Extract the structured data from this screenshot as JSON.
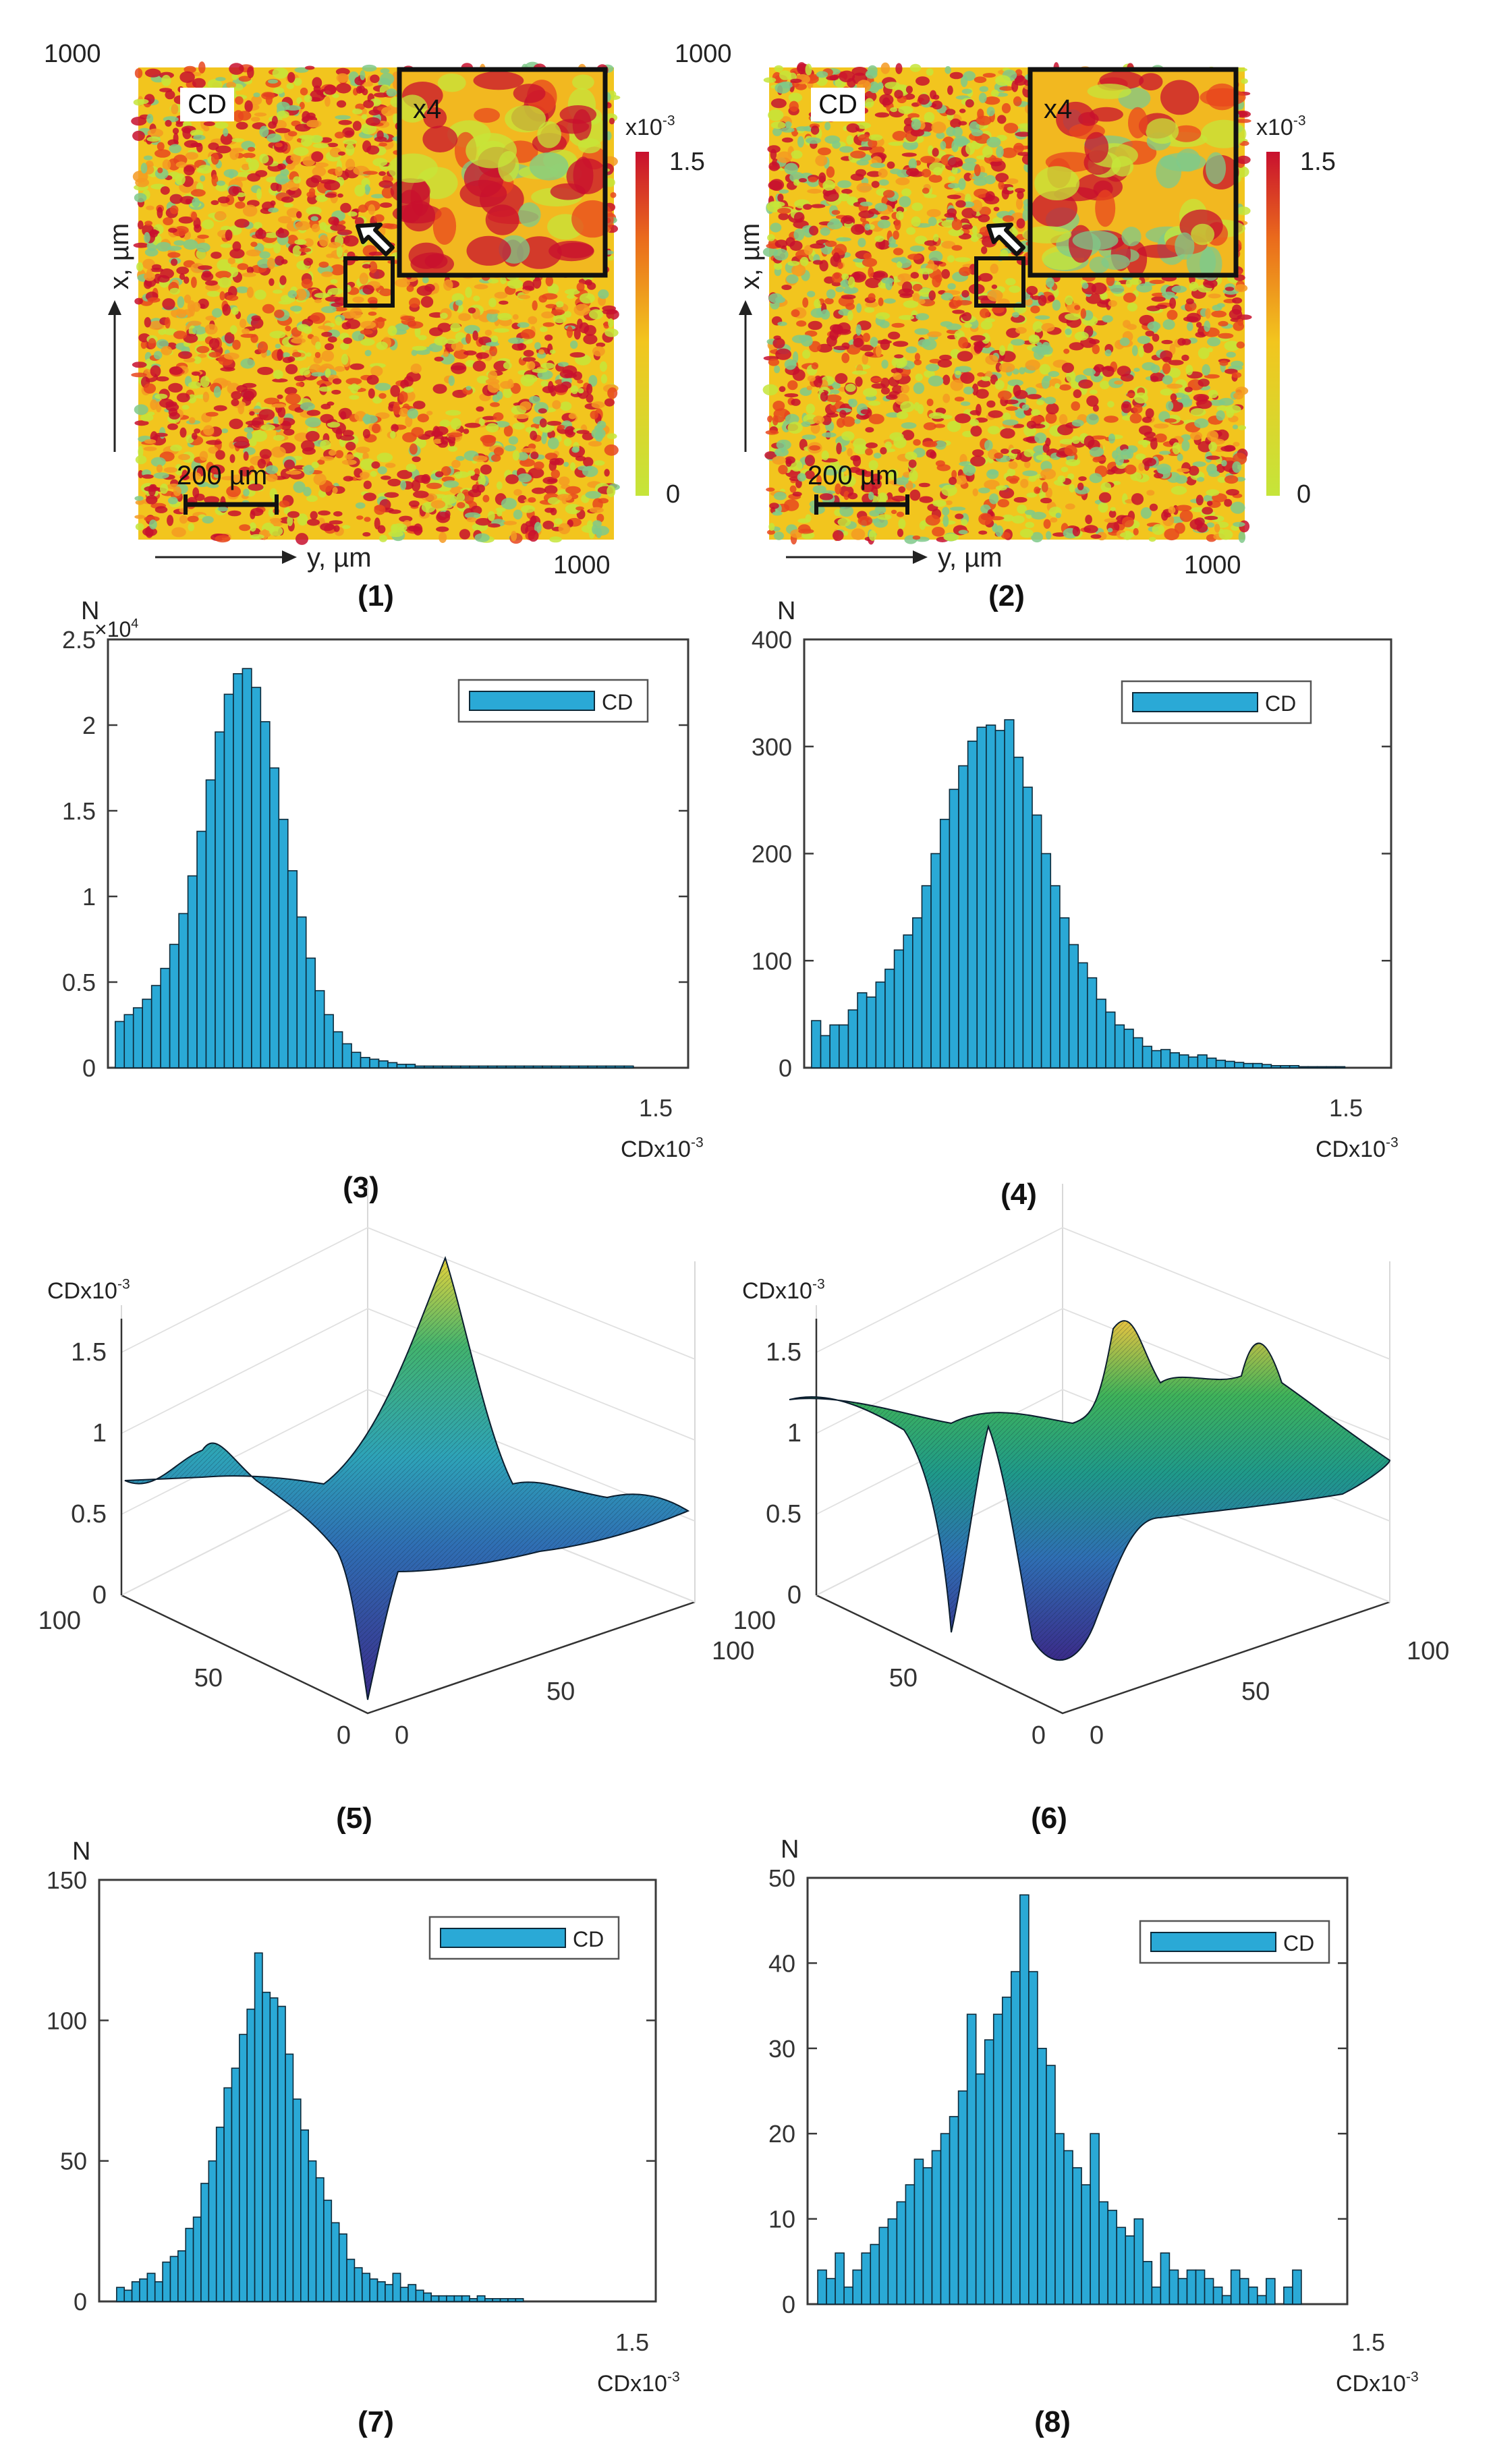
{
  "colors": {
    "bar": "#2aa9d6",
    "bar_edge": "#0d2a3a",
    "heat_low": "#c5e53a",
    "heat_mid": "#f2c51e",
    "heat_high": "#c8102e",
    "heat_green": "#7fc98a"
  },
  "chart_data": [
    {
      "id": "1",
      "type": "heatmap",
      "panel_label": "(1)",
      "overlay_label": "CD",
      "inset_label": "x4",
      "x_axis": {
        "label": "y, µm",
        "range": [
          0,
          1000
        ],
        "tick_max": "1000"
      },
      "y_axis": {
        "label": "x, µm",
        "range": [
          0,
          1000
        ],
        "tick_max": "1000"
      },
      "scalebar": "200 µm",
      "colorbar": {
        "exponent_label": "x10",
        "exponent": "-3",
        "max_label": "1.5",
        "min_label": "0",
        "range": [
          0,
          1.5
        ]
      }
    },
    {
      "id": "2",
      "type": "heatmap",
      "panel_label": "(2)",
      "overlay_label": "CD",
      "inset_label": "x4",
      "x_axis": {
        "label": "y, µm",
        "range": [
          0,
          1000
        ],
        "tick_max": "1000"
      },
      "y_axis": {
        "label": "x, µm",
        "range": [
          0,
          1000
        ],
        "tick_max": "1000"
      },
      "scalebar": "200 µm",
      "colorbar": {
        "exponent_label": "x10",
        "exponent": "-3",
        "max_label": "1.5",
        "min_label": "0",
        "range": [
          0,
          1.5
        ]
      }
    },
    {
      "id": "3",
      "type": "bar",
      "panel_label": "(3)",
      "ylabel": "N",
      "ymultiplier": {
        "text": "×10",
        "exp": "4"
      },
      "xlabel": {
        "text": "CDx10",
        "exp": "-3"
      },
      "xlim": [
        0,
        1.5
      ],
      "ylim": [
        0,
        2.5
      ],
      "yticks": [
        "0",
        "0.5",
        "1",
        "1.5",
        "2",
        "2.5"
      ],
      "xtick_end": "1.5",
      "legend": "CD",
      "legend_position": "top-right",
      "bin_start": 0.02,
      "bin_width": 0.025,
      "values": [
        0.27,
        0.31,
        0.35,
        0.4,
        0.48,
        0.58,
        0.72,
        0.9,
        1.12,
        1.38,
        1.68,
        1.96,
        2.18,
        2.3,
        2.33,
        2.22,
        2.02,
        1.75,
        1.45,
        1.15,
        0.88,
        0.64,
        0.45,
        0.31,
        0.21,
        0.14,
        0.09,
        0.06,
        0.05,
        0.04,
        0.03,
        0.02,
        0.02,
        0.01,
        0.01,
        0.01,
        0.01,
        0.01,
        0.01,
        0.01,
        0.01,
        0.01,
        0.01,
        0.01,
        0.01,
        0.01,
        0.01,
        0.01,
        0.01,
        0.01,
        0.01,
        0.01,
        0.01,
        0.01,
        0.01,
        0.01,
        0.01
      ]
    },
    {
      "id": "4",
      "type": "bar",
      "panel_label": "(4)",
      "ylabel": "N",
      "xlabel": {
        "text": "CDx10",
        "exp": "-3"
      },
      "xlim": [
        0,
        1.5
      ],
      "ylim": [
        0,
        400
      ],
      "yticks": [
        "0",
        "100",
        "200",
        "300",
        "400"
      ],
      "xtick_end": "1.5",
      "legend": "CD",
      "legend_position": "top-right",
      "bin_start": 0.02,
      "bin_width": 0.025,
      "values": [
        44,
        30,
        40,
        40,
        54,
        70,
        66,
        80,
        92,
        110,
        124,
        140,
        170,
        200,
        232,
        260,
        282,
        305,
        318,
        320,
        315,
        325,
        290,
        262,
        236,
        200,
        170,
        140,
        115,
        98,
        84,
        64,
        52,
        40,
        36,
        28,
        20,
        16,
        17,
        14,
        12,
        10,
        12,
        9,
        7,
        6,
        5,
        4,
        4,
        3,
        2,
        2,
        2,
        1,
        1,
        1,
        1,
        1
      ]
    },
    {
      "id": "5",
      "type": "surface",
      "panel_label": "(5)",
      "zlabel": {
        "text": "CDx10",
        "exp": "-3"
      },
      "zlim": [
        0,
        1.5
      ],
      "zticks": [
        "0",
        "0.5",
        "1",
        "1.5"
      ],
      "xticks": [
        "0",
        "50",
        "100"
      ],
      "yticks": [
        "0",
        "50",
        "100"
      ]
    },
    {
      "id": "6",
      "type": "surface",
      "panel_label": "(6)",
      "zlabel": {
        "text": "CDx10",
        "exp": "-3"
      },
      "zlim": [
        0,
        1.5
      ],
      "zticks": [
        "0",
        "0.5",
        "1",
        "1.5"
      ],
      "xticks": [
        "0",
        "50",
        "100"
      ],
      "yticks": [
        "0",
        "50",
        "100"
      ]
    },
    {
      "id": "7",
      "type": "bar",
      "panel_label": "(7)",
      "ylabel": "N",
      "xlabel": {
        "text": "CDx10",
        "exp": "-3"
      },
      "xlim": [
        0,
        1.5
      ],
      "ylim": [
        0,
        150
      ],
      "yticks": [
        "0",
        "50",
        "100",
        "150"
      ],
      "xtick_end": "1.5",
      "legend": "CD",
      "legend_position": "top-right",
      "bin_start": 0.05,
      "bin_width": 0.022,
      "values": [
        5,
        4,
        7,
        8,
        10,
        7,
        14,
        16,
        18,
        26,
        30,
        42,
        50,
        62,
        76,
        83,
        95,
        104,
        124,
        110,
        108,
        105,
        88,
        72,
        61,
        50,
        44,
        36,
        28,
        24,
        15,
        12,
        10,
        8,
        7,
        6,
        10,
        5,
        6,
        4,
        3,
        2,
        2,
        2,
        2,
        2,
        1,
        2,
        1,
        1,
        1,
        1,
        1
      ]
    },
    {
      "id": "8",
      "type": "bar",
      "panel_label": "(8)",
      "ylabel": "N",
      "xlabel": {
        "text": "CDx10",
        "exp": "-3"
      },
      "xlim": [
        0,
        1.5
      ],
      "ylim": [
        0,
        50
      ],
      "yticks": [
        "0",
        "10",
        "20",
        "30",
        "40",
        "50"
      ],
      "xtick_end": "1.5",
      "legend": "CD",
      "legend_position": "top-right",
      "bin_start": 0.03,
      "bin_width": 0.026,
      "values": [
        4,
        3,
        6,
        2,
        4,
        6,
        7,
        9,
        10,
        12,
        14,
        17,
        16,
        18,
        20,
        22,
        25,
        34,
        27,
        31,
        34,
        36,
        39,
        48,
        39,
        30,
        28,
        20,
        18,
        16,
        14,
        20,
        12,
        11,
        9,
        8,
        10,
        5,
        2,
        6,
        4,
        3,
        4,
        4,
        3,
        2,
        1,
        4,
        3,
        2,
        1,
        3,
        0,
        2,
        4
      ]
    }
  ]
}
